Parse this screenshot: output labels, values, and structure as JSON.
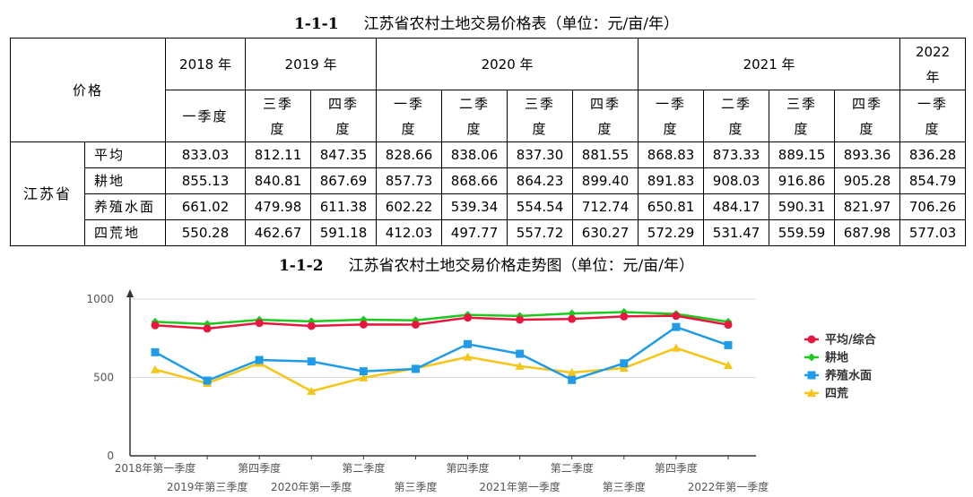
{
  "table": {
    "caption_num": "1-1-1",
    "caption_text": "江苏省农村土地交易价格表（单位：元/亩/年）",
    "price_header": "价格",
    "province": "江苏省",
    "years": [
      {
        "label": "2018 年",
        "span": 1
      },
      {
        "label": "2019 年",
        "span": 2
      },
      {
        "label": "2020 年",
        "span": 4
      },
      {
        "label": "2021 年",
        "span": 4
      },
      {
        "label": "2022\n年",
        "span": 1
      }
    ],
    "seasons": [
      "一季度",
      "三季\n度",
      "四季\n度",
      "一季\n度",
      "二季\n度",
      "三季\n度",
      "四季\n度",
      "一季\n度",
      "二季\n度",
      "三季\n度",
      "四季\n度",
      "一季\n度"
    ],
    "rows": [
      {
        "label": "平均",
        "values": [
          "833.03",
          "812.11",
          "847.35",
          "828.66",
          "838.06",
          "837.30",
          "881.55",
          "868.83",
          "873.33",
          "889.15",
          "893.36",
          "836.28"
        ]
      },
      {
        "label": "耕地",
        "values": [
          "855.13",
          "840.81",
          "867.69",
          "857.73",
          "868.66",
          "864.23",
          "899.40",
          "891.83",
          "908.03",
          "916.86",
          "905.28",
          "854.79"
        ]
      },
      {
        "label": "养殖水面",
        "values": [
          "661.02",
          "479.98",
          "611.38",
          "602.22",
          "539.34",
          "554.54",
          "712.74",
          "650.81",
          "484.17",
          "590.31",
          "821.97",
          "706.26"
        ]
      },
      {
        "label": "四荒地",
        "values": [
          "550.28",
          "462.67",
          "591.18",
          "412.03",
          "497.77",
          "557.72",
          "630.27",
          "572.29",
          "531.47",
          "559.59",
          "687.98",
          "577.03"
        ]
      }
    ]
  },
  "chart_caption": {
    "num": "1-1-2",
    "text": "江苏省农村土地交易价格走势图（单位：元/亩/年）"
  },
  "chart_data": {
    "type": "line",
    "title": "",
    "xlabel": "",
    "ylabel": "",
    "ylim": [
      0,
      1000
    ],
    "yticks": [
      0,
      500,
      1000
    ],
    "categories": [
      "2018年第一季度",
      "2019年第三季度",
      "第四季度",
      "2020年第一季度",
      "第二季度",
      "第三季度",
      "第四季度",
      "2021年第一季度",
      "第二季度",
      "第三季度",
      "第四季度",
      "2022年第一季度"
    ],
    "x_tick_labels_upper": [
      "2018年第一季度",
      "第四季度",
      "第二季度",
      "第四季度",
      "第二季度",
      "第四季度"
    ],
    "x_tick_labels_lower": [
      "2019年第三季度",
      "2020年第一季度",
      "第三季度",
      "2021年第一季度",
      "第三季度",
      "2022年第一季度"
    ],
    "grid": "horizontal",
    "legend_position": "right",
    "series": [
      {
        "name": "平均/综合",
        "color": "#e8173f",
        "marker": "circle",
        "values": [
          833.03,
          812.11,
          847.35,
          828.66,
          838.06,
          837.3,
          881.55,
          868.83,
          873.33,
          889.15,
          893.36,
          836.28
        ]
      },
      {
        "name": "耕地",
        "color": "#1ec91e",
        "marker": "diamond",
        "values": [
          855.13,
          840.81,
          867.69,
          857.73,
          868.66,
          864.23,
          899.4,
          891.83,
          908.03,
          916.86,
          905.28,
          854.79
        ]
      },
      {
        "name": "养殖水面",
        "color": "#1f9be8",
        "marker": "square",
        "values": [
          661.02,
          479.98,
          611.38,
          602.22,
          539.34,
          554.54,
          712.74,
          650.81,
          484.17,
          590.31,
          821.97,
          706.26
        ]
      },
      {
        "name": "四荒",
        "color": "#f5c518",
        "marker": "triangle",
        "values": [
          550.28,
          462.67,
          591.18,
          412.03,
          497.77,
          557.72,
          630.27,
          572.29,
          531.47,
          559.59,
          687.98,
          577.03
        ]
      }
    ]
  }
}
